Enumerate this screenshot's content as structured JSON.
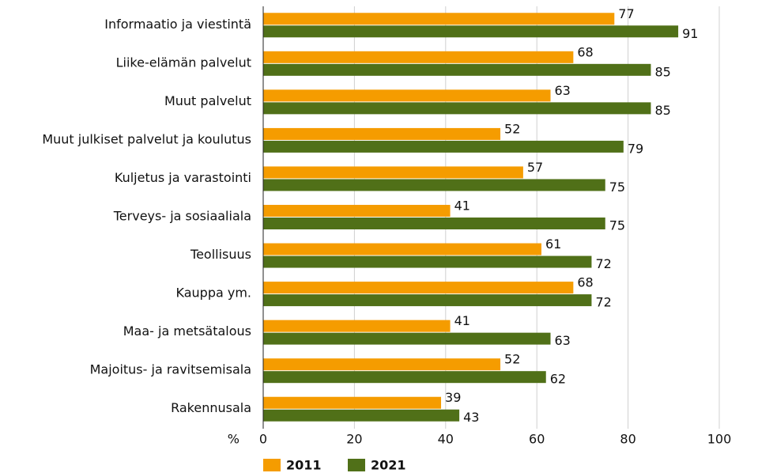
{
  "chart_data": {
    "type": "bar",
    "orientation": "horizontal",
    "xlabel": "%",
    "categories": [
      "Informaatio ja viestintä",
      "Liike-elämän palvelut",
      "Muut palvelut",
      "Muut julkiset palvelut ja koulutus",
      "Kuljetus ja varastointi",
      "Terveys- ja sosiaaliala",
      "Teollisuus",
      "Kauppa ym.",
      "Maa- ja metsätalous",
      "Majoitus- ja ravitsemisala",
      "Rakennusala"
    ],
    "series": [
      {
        "name": "2011",
        "color": "#f59c00",
        "values": [
          77,
          68,
          63,
          52,
          57,
          41,
          61,
          68,
          41,
          52,
          39
        ]
      },
      {
        "name": "2021",
        "color": "#507018",
        "values": [
          91,
          85,
          85,
          79,
          75,
          75,
          72,
          72,
          63,
          62,
          43
        ]
      }
    ],
    "xlim": [
      0,
      100
    ],
    "xticks": [
      0,
      20,
      40,
      60,
      80,
      100
    ],
    "grid": true,
    "legend": "bottom"
  }
}
